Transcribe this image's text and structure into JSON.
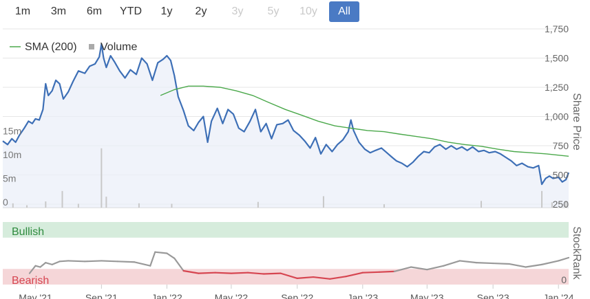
{
  "range_buttons": [
    {
      "label": "1m",
      "state": "enabled"
    },
    {
      "label": "3m",
      "state": "enabled"
    },
    {
      "label": "6m",
      "state": "enabled"
    },
    {
      "label": "YTD",
      "state": "enabled"
    },
    {
      "label": "1y",
      "state": "enabled"
    },
    {
      "label": "2y",
      "state": "enabled"
    },
    {
      "label": "3y",
      "state": "disabled"
    },
    {
      "label": "5y",
      "state": "disabled"
    },
    {
      "label": "10y",
      "state": "disabled"
    },
    {
      "label": "All",
      "state": "active"
    }
  ],
  "colors": {
    "price": "#3d6fb6",
    "sma": "#4aa84a",
    "volume": "#c8c8c8",
    "rank": "#999999",
    "rank_bearish": "#d64550",
    "bullish_band": "#d6ecdc",
    "bearish_band": "#f5d6d8",
    "bullish_text": "#2e8b3e",
    "bearish_text": "#d64550",
    "active_button": "#4a7ac4"
  },
  "chart_data": [
    {
      "type": "line",
      "title": "",
      "ylabel": "Share Price",
      "ylim": [
        250,
        1750
      ],
      "y_ticks": [
        "1,750",
        "1,500",
        "1,250",
        "1,000",
        "750",
        "500",
        "250"
      ],
      "volume_ticks": [
        "15m",
        "10m",
        "5m",
        "0"
      ],
      "volume_ylim": [
        0,
        17.5
      ],
      "legend": [
        "SMA (200)",
        "Volume"
      ],
      "x_ticks": [
        "May '21",
        "Sep '21",
        "Jan '22",
        "May '22",
        "Sep '22",
        "Jan '23",
        "May '23",
        "Sep '23",
        "Jan '24"
      ],
      "series": [
        {
          "name": "Share Price",
          "points": [
            [
              "2021-03-01",
              790
            ],
            [
              "2021-03-10",
              760
            ],
            [
              "2021-03-18",
              810
            ],
            [
              "2021-03-25",
              780
            ],
            [
              "2021-04-01",
              840
            ],
            [
              "2021-04-10",
              900
            ],
            [
              "2021-04-18",
              960
            ],
            [
              "2021-04-25",
              940
            ],
            [
              "2021-05-01",
              980
            ],
            [
              "2021-05-08",
              970
            ],
            [
              "2021-05-15",
              1060
            ],
            [
              "2021-05-20",
              1280
            ],
            [
              "2021-05-25",
              1180
            ],
            [
              "2021-06-01",
              1220
            ],
            [
              "2021-06-08",
              1310
            ],
            [
              "2021-06-15",
              1280
            ],
            [
              "2021-06-22",
              1150
            ],
            [
              "2021-07-01",
              1210
            ],
            [
              "2021-07-10",
              1300
            ],
            [
              "2021-07-20",
              1390
            ],
            [
              "2021-08-01",
              1370
            ],
            [
              "2021-08-10",
              1430
            ],
            [
              "2021-08-20",
              1450
            ],
            [
              "2021-08-28",
              1510
            ],
            [
              "2021-09-01",
              1620
            ],
            [
              "2021-09-05",
              1500
            ],
            [
              "2021-09-10",
              1420
            ],
            [
              "2021-09-18",
              1520
            ],
            [
              "2021-09-25",
              1470
            ],
            [
              "2021-10-05",
              1390
            ],
            [
              "2021-10-15",
              1330
            ],
            [
              "2021-10-25",
              1400
            ],
            [
              "2021-11-05",
              1360
            ],
            [
              "2021-11-15",
              1500
            ],
            [
              "2021-11-25",
              1450
            ],
            [
              "2021-12-05",
              1310
            ],
            [
              "2021-12-15",
              1460
            ],
            [
              "2021-12-25",
              1490
            ],
            [
              "2022-01-01",
              1520
            ],
            [
              "2022-01-08",
              1480
            ],
            [
              "2022-01-15",
              1350
            ],
            [
              "2022-01-22",
              1170
            ],
            [
              "2022-02-01",
              1050
            ],
            [
              "2022-02-10",
              920
            ],
            [
              "2022-02-20",
              880
            ],
            [
              "2022-03-01",
              950
            ],
            [
              "2022-03-10",
              1000
            ],
            [
              "2022-03-18",
              780
            ],
            [
              "2022-03-25",
              960
            ],
            [
              "2022-04-05",
              1070
            ],
            [
              "2022-04-15",
              940
            ],
            [
              "2022-04-25",
              1060
            ],
            [
              "2022-05-05",
              1020
            ],
            [
              "2022-05-15",
              900
            ],
            [
              "2022-05-25",
              870
            ],
            [
              "2022-06-05",
              960
            ],
            [
              "2022-06-15",
              1060
            ],
            [
              "2022-06-25",
              870
            ],
            [
              "2022-07-05",
              940
            ],
            [
              "2022-07-15",
              810
            ],
            [
              "2022-07-25",
              930
            ],
            [
              "2022-08-05",
              940
            ],
            [
              "2022-08-15",
              970
            ],
            [
              "2022-08-25",
              880
            ],
            [
              "2022-09-05",
              840
            ],
            [
              "2022-09-15",
              790
            ],
            [
              "2022-09-25",
              730
            ],
            [
              "2022-10-05",
              820
            ],
            [
              "2022-10-15",
              680
            ],
            [
              "2022-10-25",
              760
            ],
            [
              "2022-11-05",
              700
            ],
            [
              "2022-11-15",
              760
            ],
            [
              "2022-11-25",
              800
            ],
            [
              "2022-12-05",
              870
            ],
            [
              "2022-12-10",
              970
            ],
            [
              "2022-12-15",
              880
            ],
            [
              "2022-12-25",
              780
            ],
            [
              "2023-01-05",
              720
            ],
            [
              "2023-01-15",
              690
            ],
            [
              "2023-01-25",
              710
            ],
            [
              "2023-02-05",
              730
            ],
            [
              "2023-02-15",
              690
            ],
            [
              "2023-02-25",
              650
            ],
            [
              "2023-03-05",
              620
            ],
            [
              "2023-03-15",
              600
            ],
            [
              "2023-03-25",
              570
            ],
            [
              "2023-04-05",
              610
            ],
            [
              "2023-04-15",
              660
            ],
            [
              "2023-04-25",
              700
            ],
            [
              "2023-05-05",
              690
            ],
            [
              "2023-05-15",
              740
            ],
            [
              "2023-05-25",
              760
            ],
            [
              "2023-06-05",
              720
            ],
            [
              "2023-06-15",
              750
            ],
            [
              "2023-06-25",
              720
            ],
            [
              "2023-07-05",
              740
            ],
            [
              "2023-07-15",
              710
            ],
            [
              "2023-07-25",
              740
            ],
            [
              "2023-08-05",
              700
            ],
            [
              "2023-08-15",
              710
            ],
            [
              "2023-08-25",
              690
            ],
            [
              "2023-09-05",
              700
            ],
            [
              "2023-09-15",
              680
            ],
            [
              "2023-09-25",
              650
            ],
            [
              "2023-10-05",
              620
            ],
            [
              "2023-10-15",
              580
            ],
            [
              "2023-10-25",
              600
            ],
            [
              "2023-11-05",
              570
            ],
            [
              "2023-11-15",
              560
            ],
            [
              "2023-11-25",
              580
            ],
            [
              "2023-12-01",
              420
            ],
            [
              "2023-12-08",
              470
            ],
            [
              "2023-12-15",
              490
            ],
            [
              "2023-12-22",
              470
            ],
            [
              "2024-01-01",
              480
            ],
            [
              "2024-01-08",
              440
            ],
            [
              "2024-01-15",
              460
            ],
            [
              "2024-01-20",
              520
            ]
          ]
        },
        {
          "name": "SMA (200)",
          "points": [
            [
              "2021-12-20",
              1180
            ],
            [
              "2022-01-15",
              1230
            ],
            [
              "2022-02-10",
              1260
            ],
            [
              "2022-03-10",
              1260
            ],
            [
              "2022-04-10",
              1250
            ],
            [
              "2022-05-10",
              1220
            ],
            [
              "2022-06-10",
              1180
            ],
            [
              "2022-07-10",
              1120
            ],
            [
              "2022-08-10",
              1060
            ],
            [
              "2022-09-10",
              1010
            ],
            [
              "2022-10-10",
              960
            ],
            [
              "2022-11-10",
              920
            ],
            [
              "2022-12-10",
              900
            ],
            [
              "2023-01-10",
              880
            ],
            [
              "2023-02-10",
              870
            ],
            [
              "2023-03-10",
              850
            ],
            [
              "2023-04-10",
              830
            ],
            [
              "2023-05-10",
              810
            ],
            [
              "2023-06-10",
              780
            ],
            [
              "2023-07-10",
              760
            ],
            [
              "2023-08-10",
              745
            ],
            [
              "2023-09-10",
              720
            ],
            [
              "2023-10-10",
              700
            ],
            [
              "2023-11-10",
              690
            ],
            [
              "2023-12-10",
              680
            ],
            [
              "2024-01-20",
              660
            ]
          ]
        }
      ],
      "volume": [
        [
          "2021-03-20",
          0.9
        ],
        [
          "2021-04-15",
          0.5
        ],
        [
          "2021-05-20",
          1.3
        ],
        [
          "2021-06-20",
          3.5
        ],
        [
          "2021-07-20",
          0.8
        ],
        [
          "2021-09-01",
          12.5
        ],
        [
          "2021-09-10",
          2.3
        ],
        [
          "2021-11-10",
          0.9
        ],
        [
          "2022-01-10",
          0.8
        ],
        [
          "2022-06-20",
          1.2
        ],
        [
          "2022-10-20",
          2.4
        ],
        [
          "2023-02-10",
          0.7
        ],
        [
          "2023-08-10",
          1.4
        ],
        [
          "2023-12-01",
          3.5
        ],
        [
          "2023-12-20",
          1.1
        ],
        [
          "2024-01-15",
          1.3
        ]
      ]
    },
    {
      "type": "line",
      "title": "",
      "ylabel": "StockRank",
      "ylim": [
        0,
        100
      ],
      "y_ticks": [
        "0"
      ],
      "bands": [
        "Bullish",
        "Bearish"
      ],
      "series": [
        {
          "name": "StockRank",
          "points": [
            [
              "2021-04-20",
              18
            ],
            [
              "2021-05-01",
              30
            ],
            [
              "2021-05-10",
              28
            ],
            [
              "2021-05-20",
              35
            ],
            [
              "2021-06-01",
              32
            ],
            [
              "2021-06-15",
              37
            ],
            [
              "2021-07-01",
              38
            ],
            [
              "2021-08-01",
              37
            ],
            [
              "2021-09-01",
              38
            ],
            [
              "2021-10-01",
              37
            ],
            [
              "2021-11-01",
              36
            ],
            [
              "2021-12-01",
              30
            ],
            [
              "2021-12-10",
              52
            ],
            [
              "2022-01-01",
              50
            ],
            [
              "2022-01-15",
              42
            ],
            [
              "2022-02-01",
              22
            ],
            [
              "2022-03-01",
              18
            ],
            [
              "2022-04-01",
              19
            ],
            [
              "2022-05-01",
              18
            ],
            [
              "2022-06-01",
              19
            ],
            [
              "2022-07-01",
              17
            ],
            [
              "2022-08-01",
              18
            ],
            [
              "2022-09-01",
              10
            ],
            [
              "2022-10-01",
              12
            ],
            [
              "2022-11-01",
              9
            ],
            [
              "2022-12-01",
              13
            ],
            [
              "2023-01-01",
              19
            ],
            [
              "2023-02-01",
              20
            ],
            [
              "2023-03-01",
              21
            ],
            [
              "2023-04-01",
              28
            ],
            [
              "2023-05-01",
              24
            ],
            [
              "2023-06-01",
              30
            ],
            [
              "2023-07-01",
              38
            ],
            [
              "2023-08-01",
              35
            ],
            [
              "2023-09-01",
              34
            ],
            [
              "2023-10-01",
              33
            ],
            [
              "2023-11-01",
              28
            ],
            [
              "2023-12-01",
              32
            ],
            [
              "2024-01-01",
              38
            ],
            [
              "2024-01-20",
              43
            ]
          ]
        }
      ]
    }
  ]
}
